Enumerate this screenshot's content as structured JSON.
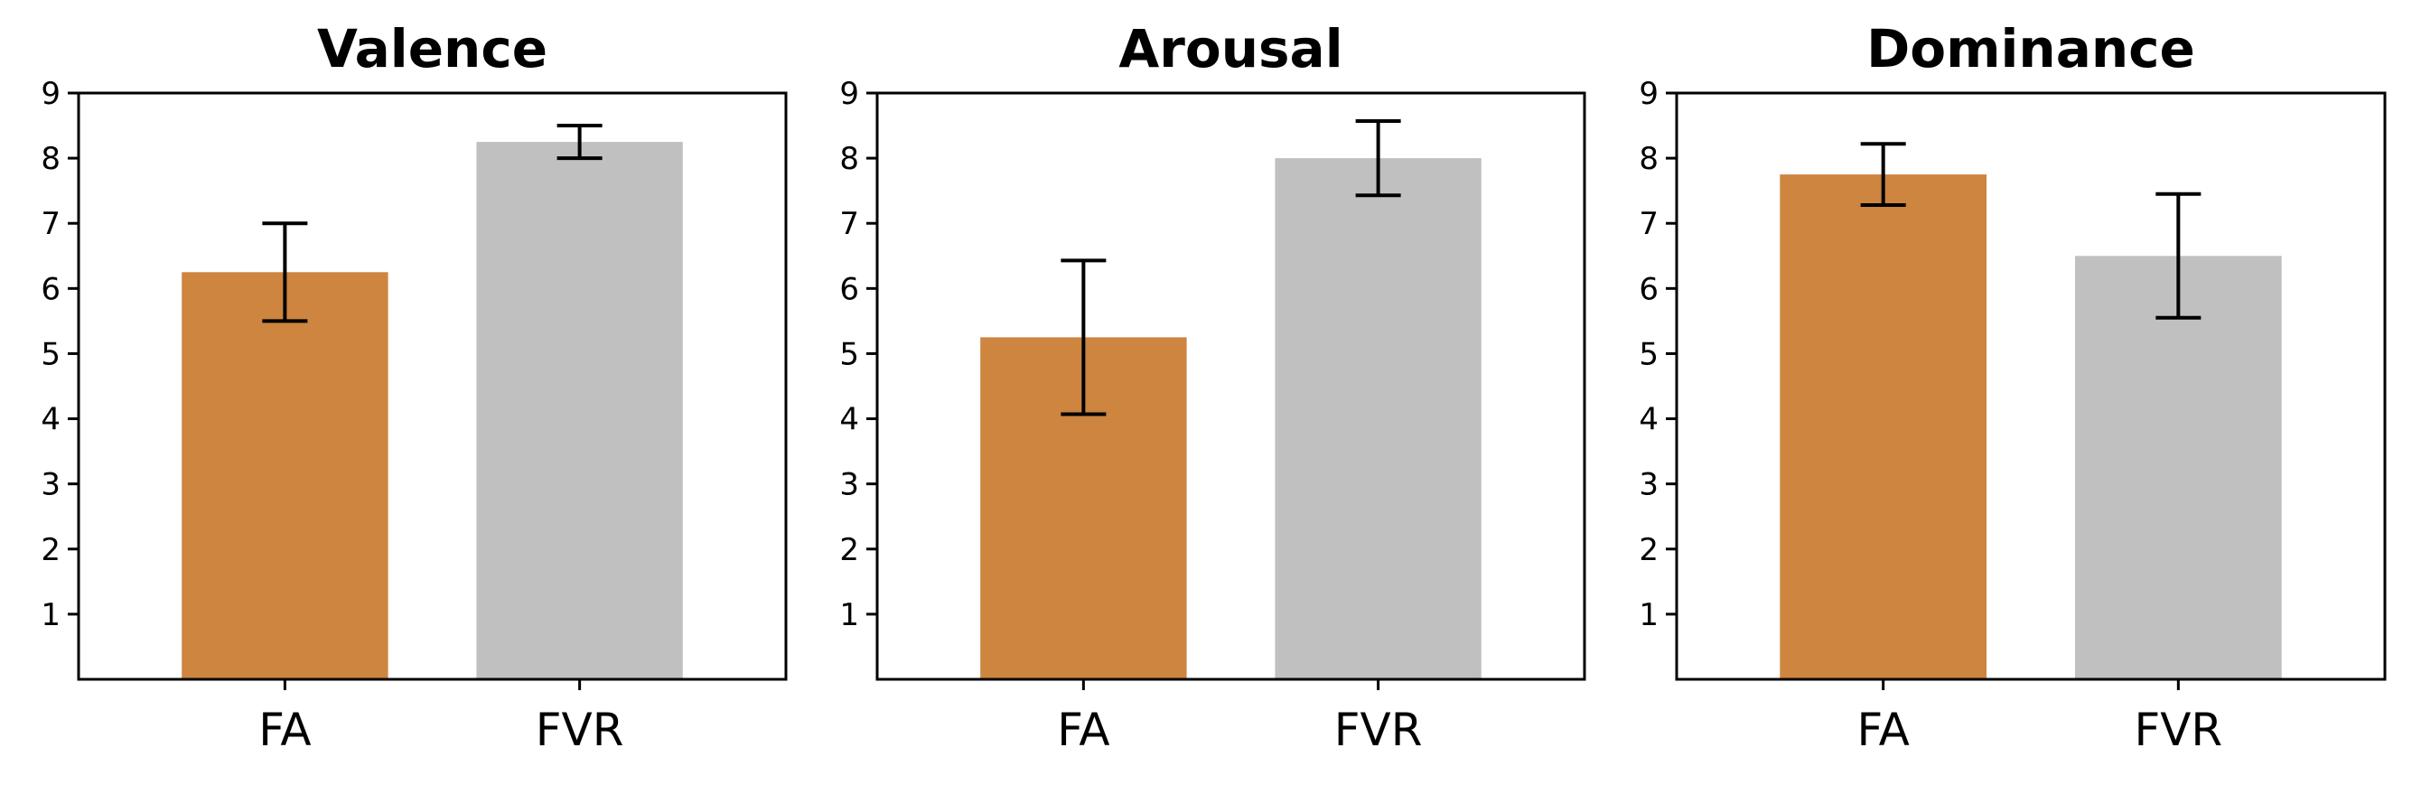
{
  "chart_data": [
    {
      "type": "bar",
      "title": "Valence",
      "xlabel": "",
      "ylabel": "",
      "categories": [
        "FA",
        "FVR"
      ],
      "values": [
        6.25,
        8.25
      ],
      "errors": [
        0.75,
        0.25
      ],
      "colors": [
        "#CD853F",
        "#C0C0C0"
      ],
      "ylim": [
        0,
        9
      ],
      "yticks": [
        "1",
        "2",
        "3",
        "4",
        "5",
        "6",
        "7",
        "8",
        "9"
      ],
      "grid": false
    },
    {
      "type": "bar",
      "title": "Arousal",
      "xlabel": "",
      "ylabel": "",
      "categories": [
        "FA",
        "FVR"
      ],
      "values": [
        5.25,
        8.0
      ],
      "errors": [
        1.18,
        0.57
      ],
      "colors": [
        "#CD853F",
        "#C0C0C0"
      ],
      "ylim": [
        0,
        9
      ],
      "yticks": [
        "1",
        "2",
        "3",
        "4",
        "5",
        "6",
        "7",
        "8",
        "9"
      ],
      "grid": false
    },
    {
      "type": "bar",
      "title": "Dominance",
      "xlabel": "",
      "ylabel": "",
      "categories": [
        "FA",
        "FVR"
      ],
      "values": [
        7.75,
        6.5
      ],
      "errors": [
        0.47,
        0.95
      ],
      "colors": [
        "#CD853F",
        "#C0C0C0"
      ],
      "ylim": [
        0,
        9
      ],
      "yticks": [
        "1",
        "2",
        "3",
        "4",
        "5",
        "6",
        "7",
        "8",
        "9"
      ],
      "grid": false
    }
  ]
}
